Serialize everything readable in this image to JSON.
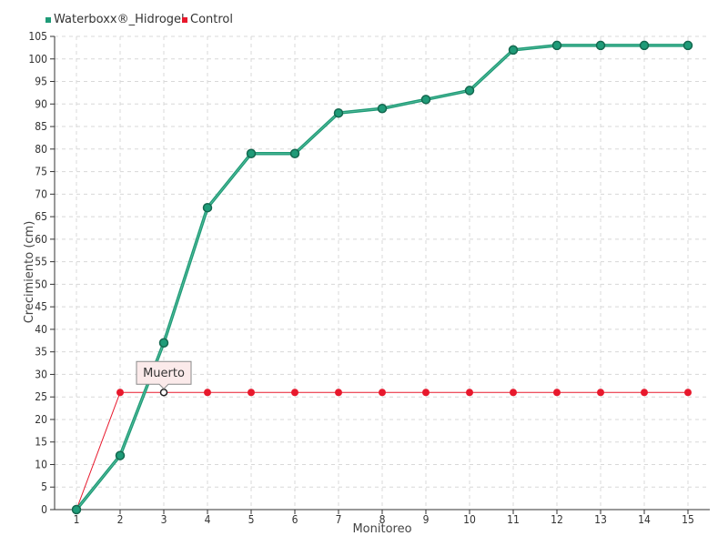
{
  "chart_data": {
    "type": "line",
    "xlabel": "Monitoreo",
    "ylabel": "Crecimiento (cm)",
    "categories": [
      "1",
      "2",
      "3",
      "4",
      "5",
      "6",
      "7",
      "8",
      "9",
      "10",
      "11",
      "12",
      "13",
      "14",
      "15"
    ],
    "ylim": [
      0,
      105
    ],
    "yticks": [
      0,
      5,
      10,
      15,
      20,
      25,
      30,
      35,
      40,
      45,
      50,
      55,
      60,
      65,
      70,
      75,
      80,
      85,
      90,
      95,
      100,
      105
    ],
    "grid": true,
    "legend_position": "top-left",
    "series": [
      {
        "name": "Waterboxx®_Hidrogel",
        "color": "#1f9b78",
        "values": [
          0,
          12,
          37,
          67,
          79,
          79,
          88,
          89,
          91,
          93,
          102,
          103,
          103,
          103,
          103
        ]
      },
      {
        "name": "Control",
        "color": "#e8182c",
        "values": [
          0,
          26,
          26,
          26,
          26,
          26,
          26,
          26,
          26,
          26,
          26,
          26,
          26,
          26,
          26
        ]
      }
    ],
    "tooltip": {
      "series": "Control",
      "category": "3",
      "text": "Muerto"
    }
  }
}
